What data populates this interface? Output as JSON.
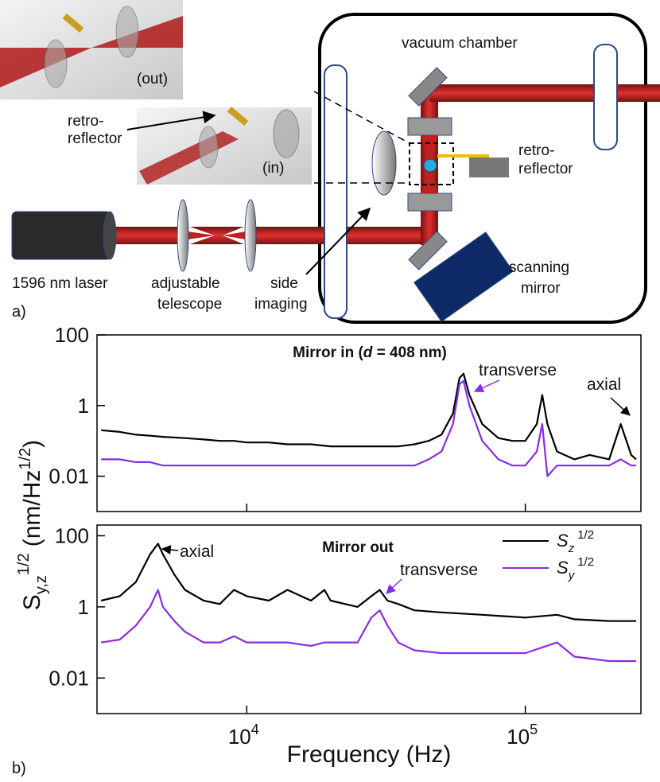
{
  "diagram": {
    "panel_a": "a)",
    "panel_b": "b)",
    "vacuum_chamber": "vacuum chamber",
    "inset_out": "(out)",
    "inset_in": "(in)",
    "retro_reflector_left": [
      "retro-",
      "reflector"
    ],
    "retro_reflector_right": [
      "retro-",
      "reflector"
    ],
    "laser": "1596 nm laser",
    "telescope": [
      "adjustable",
      "telescope"
    ],
    "side_imaging": [
      "side",
      "imaging"
    ],
    "scanning_mirror": [
      "scanning",
      "mirror"
    ]
  },
  "ylabel_parts": [
    "S",
    "y,z",
    "1/2",
    "(nm/Hz",
    "1/2",
    ")"
  ],
  "xlabel": "Frequency (Hz)",
  "chart_data": [
    {
      "type": "line",
      "title_parts": [
        "Mirror in (",
        "d",
        " = 408 nm)"
      ],
      "log_x": true,
      "log_y": true,
      "xlim": [
        2900,
        260000
      ],
      "ylim": [
        0.001,
        100
      ],
      "yticks": [
        100,
        1,
        0.01
      ],
      "x": [
        3000,
        3500,
        4000,
        4500,
        5000,
        6000,
        7000,
        8000,
        9000,
        10000,
        12000,
        14000,
        17000,
        20000,
        25000,
        30000,
        35000,
        40000,
        45000,
        50000,
        55000,
        58000,
        60000,
        63000,
        70000,
        80000,
        90000,
        100000,
        110000,
        115000,
        120000,
        130000,
        150000,
        170000,
        200000,
        220000,
        240000,
        250000
      ],
      "series": [
        {
          "name": "S",
          "name_sub": "z",
          "name_sup": "1/2",
          "color": "#000000",
          "values": [
            0.2,
            0.18,
            0.15,
            0.14,
            0.13,
            0.12,
            0.11,
            0.1,
            0.1,
            0.09,
            0.09,
            0.08,
            0.08,
            0.07,
            0.07,
            0.07,
            0.07,
            0.08,
            0.1,
            0.15,
            0.6,
            6,
            8,
            2,
            0.3,
            0.12,
            0.1,
            0.1,
            0.3,
            2,
            0.3,
            0.05,
            0.03,
            0.04,
            0.03,
            0.3,
            0.04,
            0.03
          ]
        },
        {
          "name": "S",
          "name_sub": "y",
          "name_sup": "1/2",
          "color": "#8a2be2",
          "values": [
            0.03,
            0.03,
            0.025,
            0.025,
            0.02,
            0.02,
            0.02,
            0.02,
            0.02,
            0.02,
            0.02,
            0.02,
            0.02,
            0.02,
            0.02,
            0.02,
            0.02,
            0.02,
            0.03,
            0.05,
            0.3,
            4,
            5,
            1,
            0.1,
            0.03,
            0.02,
            0.02,
            0.05,
            0.3,
            0.01,
            0.02,
            0.02,
            0.02,
            0.02,
            0.03,
            0.02,
            0.02
          ]
        }
      ],
      "annotations": [
        {
          "text": "transverse",
          "color": "#8a2be2"
        },
        {
          "text": "axial",
          "color": "#000000"
        }
      ]
    },
    {
      "type": "line",
      "title_parts": [
        "Mirror out"
      ],
      "log_x": true,
      "log_y": true,
      "xlim": [
        2900,
        260000
      ],
      "ylim": [
        0.001,
        200
      ],
      "yticks": [
        100,
        1,
        0.01
      ],
      "xticks": [
        {
          "value": 10000,
          "label": "10",
          "exponent": "4"
        },
        {
          "value": 100000,
          "label": "10",
          "exponent": "5"
        }
      ],
      "x": [
        3000,
        3500,
        4000,
        4500,
        4800,
        5000,
        5500,
        6000,
        7000,
        8000,
        9000,
        10000,
        12000,
        14000,
        17000,
        19000,
        20000,
        25000,
        28000,
        30000,
        32000,
        35000,
        40000,
        50000,
        70000,
        100000,
        130000,
        150000,
        200000,
        250000
      ],
      "series": [
        {
          "name": "S",
          "name_sub": "z",
          "name_sup": "1/2",
          "color": "#000000",
          "values": [
            1.5,
            2,
            5,
            30,
            60,
            30,
            8,
            3,
            1.5,
            1.2,
            3,
            2,
            1.5,
            3,
            1.5,
            3,
            1.5,
            1,
            2,
            3,
            1.5,
            1.2,
            0.8,
            0.7,
            0.6,
            0.5,
            0.6,
            0.45,
            0.4,
            0.4
          ]
        },
        {
          "name": "S",
          "name_sub": "y",
          "name_sup": "1/2",
          "color": "#8a2be2",
          "values": [
            0.1,
            0.12,
            0.3,
            1,
            3,
            1,
            0.4,
            0.2,
            0.1,
            0.1,
            0.15,
            0.1,
            0.1,
            0.1,
            0.08,
            0.1,
            0.1,
            0.1,
            0.5,
            0.8,
            0.3,
            0.1,
            0.06,
            0.05,
            0.05,
            0.05,
            0.1,
            0.04,
            0.03,
            0.03
          ]
        }
      ],
      "annotations": [
        {
          "text": "axial",
          "color": "#000000"
        },
        {
          "text": "transverse",
          "color": "#8a2be2"
        }
      ]
    }
  ]
}
